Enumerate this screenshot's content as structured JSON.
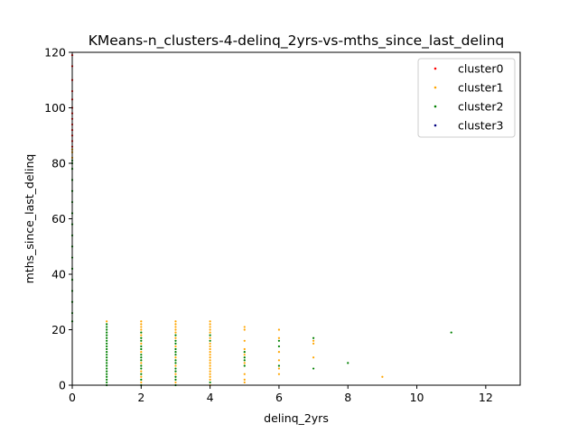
{
  "chart_data": {
    "type": "scatter",
    "title": "KMeans-n_clusters-4-delinq_2yrs-vs-mths_since_last_delinq",
    "xlabel": "delinq_2yrs",
    "ylabel": "mths_since_last_delinq",
    "xlim": [
      0,
      13
    ],
    "ylim": [
      0,
      120
    ],
    "xticks": [
      0,
      2,
      4,
      6,
      8,
      10,
      12
    ],
    "yticks": [
      0,
      20,
      40,
      60,
      80,
      100,
      120
    ],
    "grid": false,
    "legend_position": "top-right",
    "series": [
      {
        "name": "cluster0",
        "color": "#ff0000",
        "points": [
          [
            0,
            86
          ],
          [
            0,
            88
          ],
          [
            0,
            90
          ],
          [
            0,
            92
          ],
          [
            0,
            94
          ],
          [
            0,
            96
          ],
          [
            0,
            98
          ],
          [
            0,
            100
          ],
          [
            0,
            103
          ],
          [
            0,
            106
          ],
          [
            0,
            110
          ],
          [
            0,
            115
          ],
          [
            0,
            119
          ]
        ]
      },
      {
        "name": "cluster1",
        "color": "#ffa500",
        "points": [
          [
            0,
            82
          ],
          [
            0,
            84
          ],
          [
            0,
            85
          ],
          [
            1,
            23
          ],
          [
            2,
            1
          ],
          [
            2,
            3
          ],
          [
            2,
            5
          ],
          [
            2,
            8
          ],
          [
            2,
            12
          ],
          [
            2,
            15
          ],
          [
            2,
            18
          ],
          [
            2,
            20
          ],
          [
            2,
            21
          ],
          [
            2,
            22
          ],
          [
            2,
            23
          ],
          [
            3,
            1
          ],
          [
            3,
            4
          ],
          [
            3,
            7
          ],
          [
            3,
            10
          ],
          [
            3,
            14
          ],
          [
            3,
            17
          ],
          [
            3,
            19
          ],
          [
            3,
            20
          ],
          [
            3,
            21
          ],
          [
            3,
            22
          ],
          [
            3,
            23
          ],
          [
            4,
            0
          ],
          [
            4,
            2
          ],
          [
            4,
            3
          ],
          [
            4,
            4
          ],
          [
            4,
            5
          ],
          [
            4,
            6
          ],
          [
            4,
            7
          ],
          [
            4,
            8
          ],
          [
            4,
            9
          ],
          [
            4,
            10
          ],
          [
            4,
            11
          ],
          [
            4,
            12
          ],
          [
            4,
            13
          ],
          [
            4,
            14
          ],
          [
            4,
            15
          ],
          [
            4,
            17
          ],
          [
            4,
            19
          ],
          [
            4,
            20
          ],
          [
            4,
            21
          ],
          [
            4,
            22
          ],
          [
            4,
            23
          ],
          [
            5,
            1
          ],
          [
            5,
            2
          ],
          [
            5,
            4
          ],
          [
            5,
            8
          ],
          [
            5,
            11
          ],
          [
            5,
            13
          ],
          [
            5,
            16
          ],
          [
            5,
            20
          ],
          [
            5,
            21
          ],
          [
            6,
            4
          ],
          [
            6,
            6
          ],
          [
            6,
            9
          ],
          [
            6,
            12
          ],
          [
            6,
            17
          ],
          [
            6,
            20
          ],
          [
            7,
            10
          ],
          [
            7,
            15
          ],
          [
            7,
            16
          ],
          [
            9,
            3
          ]
        ]
      },
      {
        "name": "cluster2",
        "color": "#008000",
        "points": [
          [
            0,
            23
          ],
          [
            0,
            26
          ],
          [
            0,
            30
          ],
          [
            0,
            34
          ],
          [
            0,
            38
          ],
          [
            0,
            42
          ],
          [
            0,
            46
          ],
          [
            0,
            50
          ],
          [
            0,
            54
          ],
          [
            0,
            58
          ],
          [
            0,
            62
          ],
          [
            0,
            66
          ],
          [
            0,
            70
          ],
          [
            0,
            74
          ],
          [
            0,
            78
          ],
          [
            0,
            80
          ],
          [
            0,
            81
          ],
          [
            1,
            0
          ],
          [
            1,
            1
          ],
          [
            1,
            2
          ],
          [
            1,
            3
          ],
          [
            1,
            4
          ],
          [
            1,
            5
          ],
          [
            1,
            6
          ],
          [
            1,
            7
          ],
          [
            1,
            8
          ],
          [
            1,
            9
          ],
          [
            1,
            10
          ],
          [
            1,
            11
          ],
          [
            1,
            12
          ],
          [
            1,
            13
          ],
          [
            1,
            14
          ],
          [
            1,
            15
          ],
          [
            1,
            16
          ],
          [
            1,
            17
          ],
          [
            1,
            18
          ],
          [
            1,
            19
          ],
          [
            1,
            20
          ],
          [
            1,
            21
          ],
          [
            1,
            22
          ],
          [
            2,
            0
          ],
          [
            2,
            2
          ],
          [
            2,
            4
          ],
          [
            2,
            6
          ],
          [
            2,
            7
          ],
          [
            2,
            9
          ],
          [
            2,
            10
          ],
          [
            2,
            11
          ],
          [
            2,
            13
          ],
          [
            2,
            14
          ],
          [
            2,
            16
          ],
          [
            2,
            17
          ],
          [
            2,
            19
          ],
          [
            3,
            0
          ],
          [
            3,
            2
          ],
          [
            3,
            3
          ],
          [
            3,
            5
          ],
          [
            3,
            6
          ],
          [
            3,
            8
          ],
          [
            3,
            9
          ],
          [
            3,
            11
          ],
          [
            3,
            12
          ],
          [
            3,
            13
          ],
          [
            3,
            15
          ],
          [
            3,
            16
          ],
          [
            3,
            18
          ],
          [
            4,
            1
          ],
          [
            4,
            16
          ],
          [
            4,
            18
          ],
          [
            5,
            7
          ],
          [
            5,
            9
          ],
          [
            5,
            10
          ],
          [
            5,
            12
          ],
          [
            6,
            7
          ],
          [
            6,
            14
          ],
          [
            6,
            16
          ],
          [
            7,
            6
          ],
          [
            7,
            17
          ],
          [
            8,
            8
          ],
          [
            11,
            19
          ]
        ]
      },
      {
        "name": "cluster3",
        "color": "#000080",
        "points": []
      }
    ]
  }
}
